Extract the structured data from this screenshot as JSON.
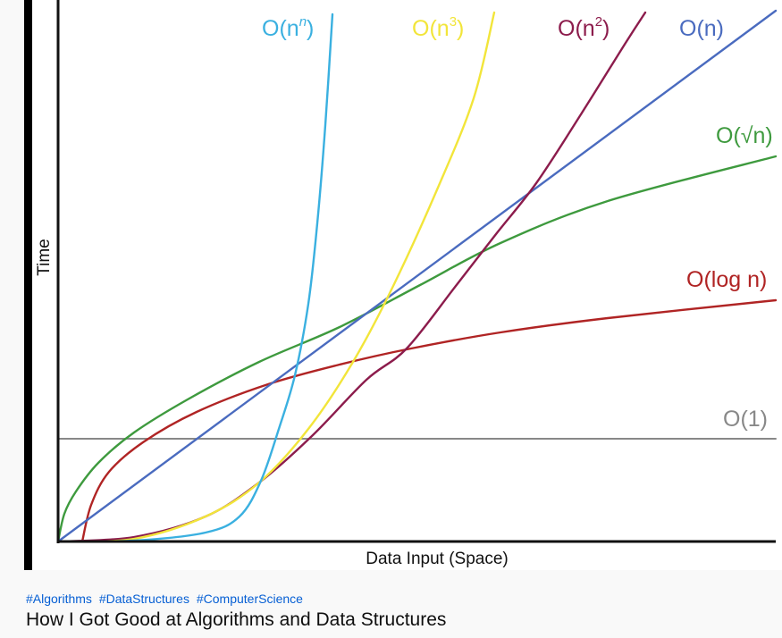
{
  "video": {
    "hashtags": [
      "#Algorithms",
      "#DataStructures",
      "#ComputerScience"
    ],
    "title": "How I Got Good at Algorithms and Data Structures"
  },
  "chart_data": {
    "type": "line",
    "title": "",
    "xlabel": "Data Input (Space)",
    "ylabel": "Time",
    "grid": false,
    "series": [
      {
        "name": "O(n^n)",
        "label_base": "O(n",
        "label_sup": "n",
        "label_tail": ")",
        "color": "#3ab0e0",
        "kind": "nn"
      },
      {
        "name": "O(n^3)",
        "label_base": "O(n",
        "label_sup": "3",
        "label_tail": ")",
        "color": "#f2e53a",
        "kind": "n3"
      },
      {
        "name": "O(n^2)",
        "label_base": "O(n",
        "label_sup": "2",
        "label_tail": ")",
        "color": "#8c1c4c",
        "kind": "n2"
      },
      {
        "name": "O(n)",
        "label_base": "O(n)",
        "label_sup": "",
        "label_tail": "",
        "color": "#4a6bbf",
        "kind": "n"
      },
      {
        "name": "O(√n)",
        "label_base": "O(√n)",
        "label_sup": "",
        "label_tail": "",
        "color": "#3e9a3e",
        "kind": "sqrt"
      },
      {
        "name": "O(log n)",
        "label_base": "O(log n)",
        "label_sup": "",
        "label_tail": "",
        "color": "#b02424",
        "kind": "log"
      },
      {
        "name": "O(1)",
        "label_base": "O(1)",
        "label_sup": "",
        "label_tail": "",
        "color": "#888888",
        "kind": "const"
      }
    ]
  }
}
